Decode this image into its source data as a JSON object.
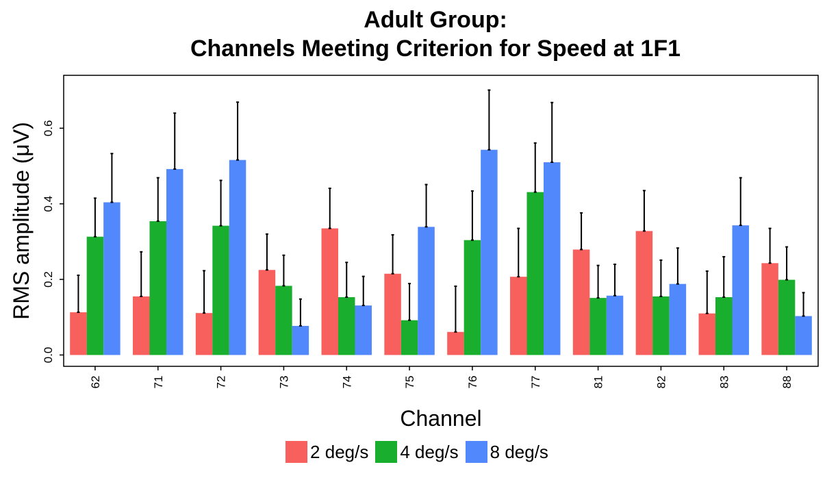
{
  "chart_data": {
    "type": "bar",
    "title": [
      "Adult Group:",
      "Channels Meeting Criterion for Speed at 1F1"
    ],
    "xlabel": "Channel",
    "ylabel": "RMS amplitude (μV)",
    "ylim": [
      -0.03,
      0.74
    ],
    "yticks": [
      "0.0",
      "0.2",
      "0.4",
      "0.6"
    ],
    "ytick_values": [
      0,
      0.2,
      0.4,
      0.6
    ],
    "categories": [
      "62",
      "71",
      "72",
      "73",
      "74",
      "75",
      "76",
      "77",
      "81",
      "82",
      "83",
      "88"
    ],
    "series": [
      {
        "name": "2 deg/s",
        "color": "#F8605E",
        "values": [
          0.113,
          0.155,
          0.111,
          0.225,
          0.335,
          0.215,
          0.061,
          0.207,
          0.279,
          0.328,
          0.11,
          0.243
        ],
        "error_upper": [
          0.211,
          0.273,
          0.223,
          0.32,
          0.441,
          0.318,
          0.182,
          0.335,
          0.376,
          0.435,
          0.222,
          0.335
        ]
      },
      {
        "name": "4 deg/s",
        "color": "#1AAE2E",
        "values": [
          0.313,
          0.354,
          0.342,
          0.183,
          0.153,
          0.092,
          0.304,
          0.431,
          0.151,
          0.155,
          0.153,
          0.199
        ],
        "error_upper": [
          0.415,
          0.469,
          0.462,
          0.264,
          0.245,
          0.189,
          0.434,
          0.561,
          0.237,
          0.251,
          0.26,
          0.286
        ]
      },
      {
        "name": "8 deg/s",
        "color": "#5189FC",
        "values": [
          0.404,
          0.492,
          0.516,
          0.077,
          0.131,
          0.339,
          0.543,
          0.51,
          0.157,
          0.188,
          0.343,
          0.103
        ],
        "error_upper": [
          0.533,
          0.64,
          0.669,
          0.148,
          0.208,
          0.451,
          0.701,
          0.668,
          0.24,
          0.283,
          0.469,
          0.165
        ]
      }
    ],
    "grid": false,
    "legend_position": "bottom"
  }
}
